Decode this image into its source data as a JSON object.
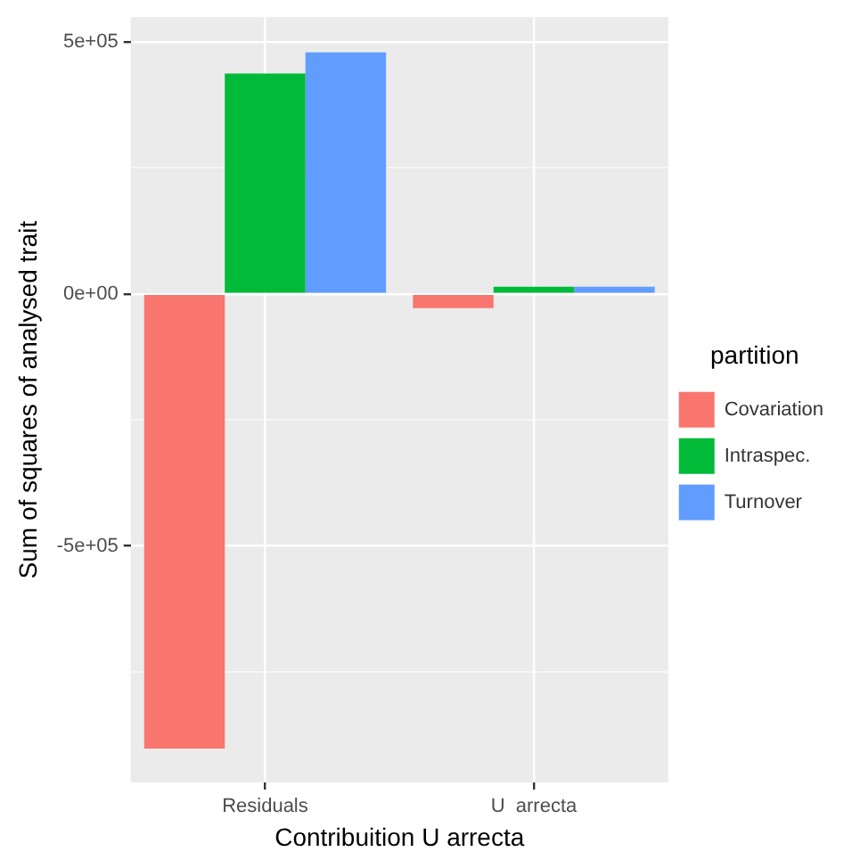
{
  "chart_data": {
    "type": "bar",
    "xlabel": "Contribuition U arrecta",
    "ylabel": "Sum of squares of analysed trait",
    "legend_title": "partition",
    "categories": [
      "Residuals",
      "U  arrecta"
    ],
    "series": [
      {
        "name": "Covariation",
        "color": "#f8766d",
        "values": [
          -902000,
          -28000
        ]
      },
      {
        "name": "Intraspec.",
        "color": "#00ba38",
        "values": [
          437000,
          14000
        ]
      },
      {
        "name": "Turnover",
        "color": "#619cff",
        "values": [
          479000,
          14000
        ]
      }
    ],
    "ylim": [
      -969000,
      549000
    ],
    "yticks": [
      {
        "value": -750000,
        "label": null
      },
      {
        "value": -500000,
        "label": "-5e+05"
      },
      {
        "value": -250000,
        "label": null
      },
      {
        "value": 0,
        "label": "0e+00"
      },
      {
        "value": 250000,
        "label": null
      },
      {
        "value": 500000,
        "label": "5e+05"
      }
    ],
    "grid": true,
    "legend": "right"
  }
}
